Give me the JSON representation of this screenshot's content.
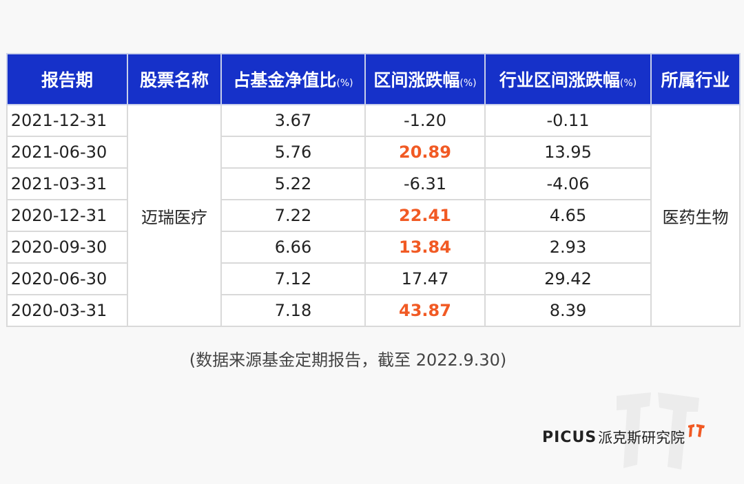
{
  "table": {
    "headers": {
      "period": "报告期",
      "stock": "股票名称",
      "nav_ratio": "占基金净值比",
      "nav_ratio_unit": "(%)",
      "change": "区间涨跌幅",
      "change_unit": "(%)",
      "industry_change": "行业区间涨跌幅",
      "industry_change_unit": "(%)",
      "industry": "所属行业"
    },
    "stock_name": "迈瑞医疗",
    "industry_name": "医药生物",
    "rows": [
      {
        "period": "2021-12-31",
        "nav_ratio": "3.67",
        "change": "-1.20",
        "industry_change": "-0.11"
      },
      {
        "period": "2021-06-30",
        "nav_ratio": "5.76",
        "change": "20.89",
        "industry_change": "13.95"
      },
      {
        "period": "2021-03-31",
        "nav_ratio": "5.22",
        "change": "-6.31",
        "industry_change": "-4.06"
      },
      {
        "period": "2020-12-31",
        "nav_ratio": "7.22",
        "change": "22.41",
        "industry_change": "4.65"
      },
      {
        "period": "2020-09-30",
        "nav_ratio": "6.66",
        "change": "13.84",
        "industry_change": "2.93"
      },
      {
        "period": "2020-06-30",
        "nav_ratio": "7.12",
        "change": "17.47",
        "industry_change": "29.42"
      },
      {
        "period": "2020-03-31",
        "nav_ratio": "7.18",
        "change": "43.87",
        "industry_change": "8.39"
      }
    ],
    "highlight_color": "#f15a24",
    "header_color": "#1631c9"
  },
  "source_note": "(数据来源基金定期报告，截至 2022.9.30)",
  "logo": {
    "brand": "PICUS",
    "org": "派克斯研究院"
  }
}
